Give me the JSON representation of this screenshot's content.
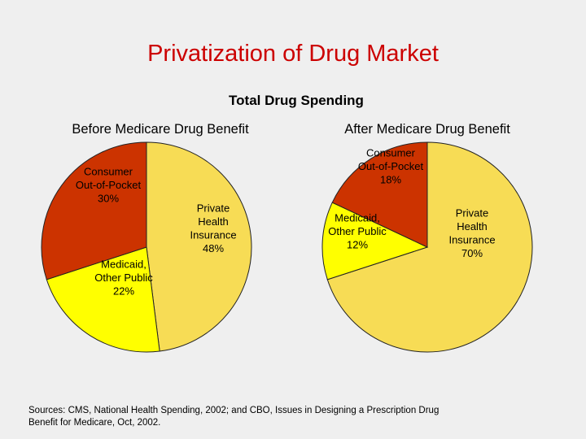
{
  "slide_title": "Privatization of Drug Market",
  "source_note": "Sources: CMS, National Health Spending, 2002; and CBO, Issues in Designing a Prescription Drug Benefit for Medicare, Oct, 2002.",
  "chart_data": {
    "type": "pie",
    "title": "Total Drug Spending",
    "pies": [
      {
        "title": "Before Medicare Drug Benefit",
        "slices": [
          {
            "category": "Private Health Insurance",
            "value": 48,
            "label_lines": [
              "Private",
              "Health",
              "Insurance",
              "48%"
            ],
            "color": "#f7dc55"
          },
          {
            "category": "Medicaid, Other Public",
            "value": 22,
            "label_lines": [
              "Medicaid,",
              "Other Public",
              "22%"
            ],
            "color": "#ffff00"
          },
          {
            "category": "Consumer Out-of-Pocket",
            "value": 30,
            "label_lines": [
              "Consumer",
              "Out-of-Pocket",
              "30%"
            ],
            "color": "#cc3300"
          }
        ]
      },
      {
        "title": "After Medicare Drug Benefit",
        "slices": [
          {
            "category": "Private Health Insurance",
            "value": 70,
            "label_lines": [
              "Private",
              "Health",
              "Insurance",
              "70%"
            ],
            "color": "#f7dc55"
          },
          {
            "category": "Medicaid, Other Public",
            "value": 12,
            "label_lines": [
              "Medicaid,",
              "Other Public",
              "12%"
            ],
            "color": "#ffff00"
          },
          {
            "category": "Consumer Out-of-Pocket",
            "value": 18,
            "label_lines": [
              "Consumer",
              "Out-of-Pocket",
              "18%"
            ],
            "color": "#cc3300"
          }
        ]
      }
    ]
  }
}
